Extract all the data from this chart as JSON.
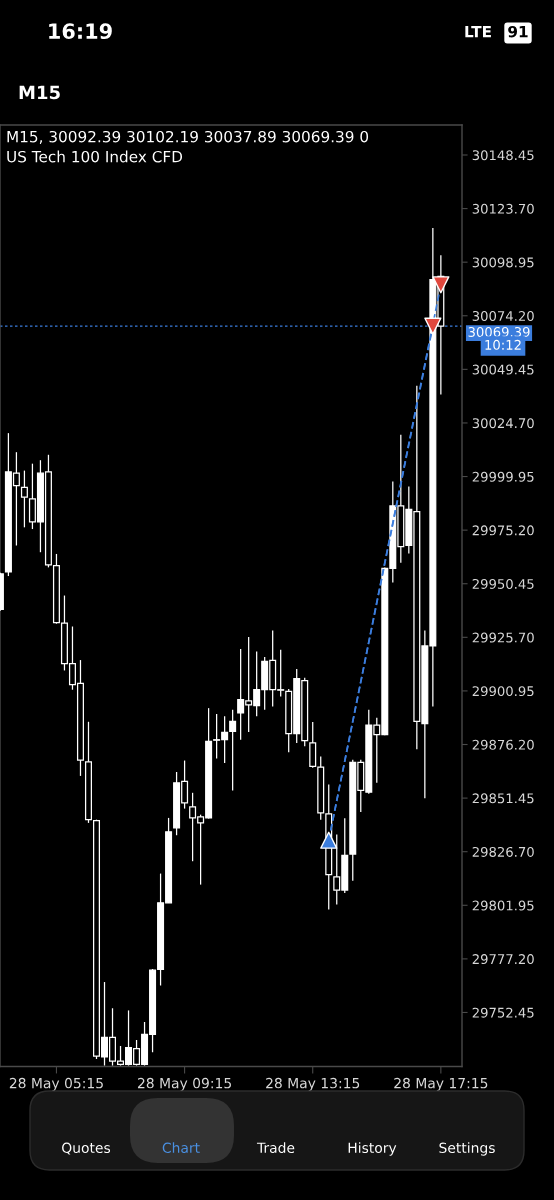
{
  "chart_data": {
    "type": "candlestick",
    "title": "M15, 30092.39 30102.19 30037.89 30069.39 0",
    "subtitle": "US Tech 100 Index CFD",
    "categories": [
      null,
      null,
      null,
      null,
      null,
      null,
      null,
      "28 May 05:15",
      null,
      null,
      null,
      null,
      null,
      null,
      null,
      null,
      null,
      null,
      null,
      null,
      null,
      null,
      null,
      "28 May 09:15",
      null,
      null,
      null,
      null,
      null,
      null,
      null,
      null,
      null,
      null,
      null,
      null,
      null,
      null,
      null,
      "28 May 13:15",
      null,
      null,
      null,
      null,
      null,
      null,
      null,
      null,
      null,
      null,
      null,
      null,
      null,
      null,
      null,
      "28 May 17:15"
    ],
    "ohlc": [
      [
        29938.6,
        29955.5,
        29938,
        29955
      ],
      [
        29955.9,
        30020,
        29954,
        30002.1
      ],
      [
        30001.5,
        30011.2,
        29968.1,
        29995.8
      ],
      [
        29995,
        30002.7,
        29976.5,
        29990.4
      ],
      [
        29989.6,
        30005.9,
        29975.7,
        29979
      ],
      [
        29979,
        30007.5,
        29965,
        30001.5
      ],
      [
        30002.1,
        30010,
        29958,
        29959.2
      ],
      [
        29958.8,
        29964.2,
        29932,
        29932.5
      ],
      [
        29932.3,
        29945,
        29910.4,
        29913.6
      ],
      [
        29913.6,
        29930.7,
        29901.5,
        29903.8
      ],
      [
        29904.4,
        29915.2,
        29861.7,
        29869
      ],
      [
        29868.2,
        29886.7,
        29840,
        29841.5
      ],
      [
        29841,
        29841.5,
        29731,
        29732.3
      ],
      [
        29731.9,
        29766.5,
        29728,
        29741
      ],
      [
        29741,
        29754.4,
        29728,
        29730
      ],
      [
        29730,
        29737,
        29728,
        29728.5
      ],
      [
        29728.5,
        29753.4,
        29728,
        29736.2
      ],
      [
        29735.7,
        29739.7,
        29728,
        29728.5
      ],
      [
        29728.5,
        29748,
        29728,
        29742.3
      ],
      [
        29742.3,
        29772.5,
        29734.1,
        29772
      ],
      [
        29772.3,
        29816.6,
        29764.9,
        29803.1
      ],
      [
        29803.1,
        29842.3,
        29803,
        29835.9
      ],
      [
        29837.7,
        29863.5,
        29834.3,
        29858.5
      ],
      [
        29859.2,
        29868.8,
        29846.6,
        29849.2
      ],
      [
        29847.4,
        29853.9,
        29822.3,
        29842.3
      ],
      [
        29842.8,
        29843.8,
        29811.5,
        29840
      ],
      [
        29842.3,
        29893,
        29842,
        29877.7
      ],
      [
        29878.2,
        29890.3,
        29869.7,
        29878.4
      ],
      [
        29878.4,
        29889.2,
        29867.7,
        29881.8
      ],
      [
        29882.3,
        29892.3,
        29855,
        29886.9
      ],
      [
        29890.8,
        29920.3,
        29878.4,
        29896.9
      ],
      [
        29896.3,
        29925.9,
        29882,
        29894.5
      ],
      [
        29894.2,
        29919.2,
        29889.2,
        29901.5
      ],
      [
        29901.5,
        29916.6,
        29892.3,
        29914.6
      ],
      [
        29915.1,
        29928.9,
        29893.8,
        29901.5
      ],
      [
        29901.5,
        29920,
        29898.4,
        29901.3
      ],
      [
        29900.7,
        29901.8,
        29872.6,
        29881.2
      ],
      [
        29881.2,
        29911.1,
        29876.9,
        29906.6
      ],
      [
        29905.7,
        29907,
        29875.4,
        29878
      ],
      [
        29876.9,
        29886.6,
        29865.5,
        29866.1
      ],
      [
        29865.8,
        29870.7,
        29841.5,
        29844.6
      ],
      [
        29844.2,
        29857.7,
        29800,
        29816.1
      ],
      [
        29815.1,
        29834.6,
        29802.3,
        29808.9
      ],
      [
        29809,
        29842.1,
        29807.6,
        29825
      ],
      [
        29825.6,
        29869.2,
        29813.3,
        29867.9
      ],
      [
        29867.9,
        29869.2,
        29845,
        29855
      ],
      [
        29854.2,
        29892.3,
        29853.5,
        29885.2
      ],
      [
        29885.2,
        29888.6,
        29858.5,
        29880.8
      ],
      [
        29880.8,
        29958,
        29880.5,
        29957.5
      ],
      [
        29957.5,
        29997.7,
        29951,
        29986.4
      ],
      [
        29986.4,
        30019.3,
        29960.1,
        29967.6
      ],
      [
        29968.2,
        29995.4,
        29964.4,
        29984.8
      ],
      [
        29983.8,
        30041.9,
        29874,
        29886.9
      ],
      [
        29885.8,
        29928.9,
        29851.4,
        29921.7
      ],
      [
        29921.7,
        30114.7,
        29893.8,
        30090.9
      ],
      [
        30092.39,
        30102.19,
        30037.89,
        30069.39
      ]
    ],
    "color": "#ffffff",
    "series": [
      {
        "type": "line",
        "color": "#3b7ddd",
        "line_style": "dashed",
        "values": [
          null,
          null,
          null,
          null,
          null,
          null,
          null,
          null,
          null,
          null,
          null,
          null,
          null,
          null,
          null,
          null,
          null,
          null,
          null,
          null,
          null,
          null,
          null,
          null,
          null,
          null,
          null,
          null,
          null,
          null,
          null,
          null,
          null,
          null,
          null,
          null,
          null,
          null,
          null,
          null,
          null,
          29832,
          null,
          null,
          null,
          null,
          null,
          null,
          null,
          null,
          null,
          null,
          null,
          null,
          30069.4,
          null
        ]
      },
      {
        "type": "line",
        "color": "#3b7ddd",
        "line_style": "dashed",
        "values": [
          null,
          null,
          null,
          null,
          null,
          null,
          null,
          null,
          null,
          null,
          null,
          null,
          null,
          null,
          null,
          null,
          null,
          null,
          null,
          null,
          null,
          null,
          null,
          null,
          null,
          null,
          null,
          null,
          null,
          null,
          null,
          null,
          null,
          null,
          null,
          null,
          null,
          null,
          null,
          null,
          null,
          29832,
          null,
          null,
          null,
          null,
          null,
          null,
          null,
          null,
          null,
          null,
          null,
          null,
          null,
          30088.5
        ]
      },
      {
        "type": "scatter",
        "color": "#3b7ddd",
        "marker": "triangle",
        "values": [
          null,
          null,
          null,
          null,
          null,
          null,
          null,
          null,
          null,
          null,
          null,
          null,
          null,
          null,
          null,
          null,
          null,
          null,
          null,
          null,
          null,
          null,
          null,
          null,
          null,
          null,
          null,
          null,
          null,
          null,
          null,
          null,
          null,
          null,
          null,
          null,
          null,
          null,
          null,
          null,
          null,
          29832,
          null,
          null,
          null,
          null,
          null,
          null,
          null,
          null,
          null,
          null,
          null,
          null,
          null,
          null
        ]
      },
      {
        "type": "scatter",
        "color": "#e0483e",
        "marker": "triangle_down",
        "values": [
          null,
          null,
          null,
          null,
          null,
          null,
          null,
          null,
          null,
          null,
          null,
          null,
          null,
          null,
          null,
          null,
          null,
          null,
          null,
          null,
          null,
          null,
          null,
          null,
          null,
          null,
          null,
          null,
          null,
          null,
          null,
          null,
          null,
          null,
          null,
          null,
          null,
          null,
          null,
          null,
          null,
          null,
          null,
          null,
          null,
          null,
          null,
          null,
          null,
          null,
          null,
          null,
          null,
          null,
          30069.4,
          30088.5
        ]
      }
    ],
    "ref_lines": [
      {
        "axis": "y",
        "value": 30069.39,
        "label": "30069.39",
        "color": "#3b7ddd",
        "line_style": "dotted"
      }
    ],
    "ylim": [
      29727.5,
      30162.3
    ],
    "yticks": [
      30148.45,
      {
        "value": 30123.7,
        "label": "30123.70"
      },
      30098.95,
      {
        "value": 30074.2,
        "label": "30074.20"
      },
      30049.45,
      {
        "value": 30024.7,
        "label": "30024.70"
      },
      29999.95,
      {
        "value": 29975.2,
        "label": "29975.20"
      },
      29950.45,
      {
        "value": 29925.7,
        "label": "29925.70"
      },
      29900.95,
      {
        "value": 29876.2,
        "label": "29876.20"
      },
      29851.45,
      {
        "value": 29826.7,
        "label": "29826.70"
      },
      29801.95,
      {
        "value": 29777.2,
        "label": "29777.20"
      },
      29752.45
    ],
    "annotations": [
      "16:19",
      "LTE",
      "91",
      "M15",
      "10:12",
      "Quotes",
      "Chart",
      "Trade",
      "History",
      "Settings"
    ]
  }
}
